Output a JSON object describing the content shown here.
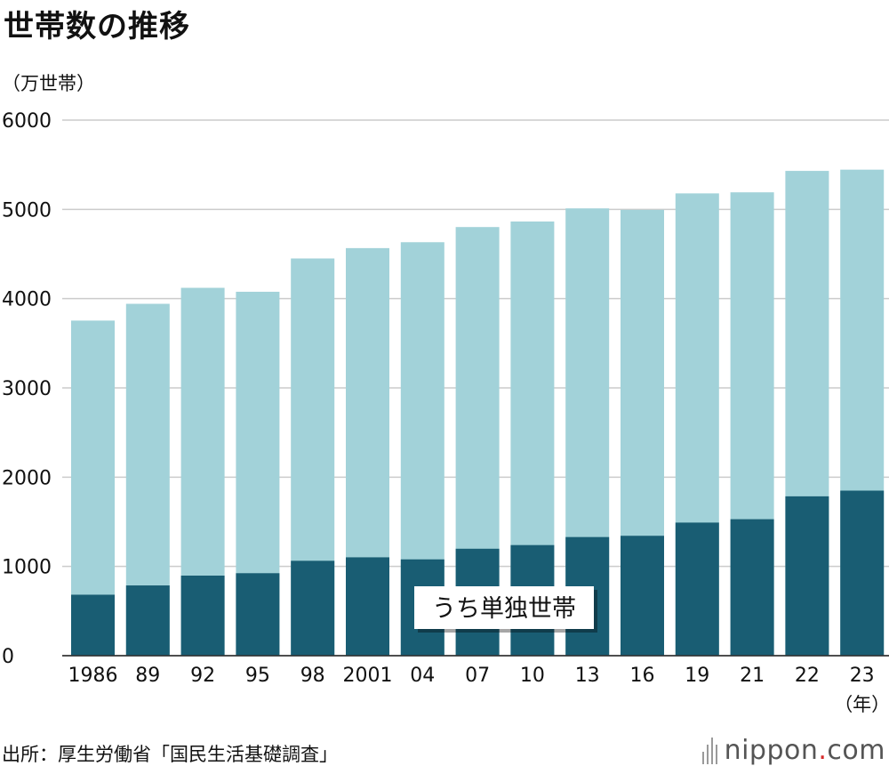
{
  "chart_data": {
    "type": "bar",
    "title": "世帯数の推移",
    "ylabel": "（万世帯）",
    "xlabel": "（年）",
    "categories": [
      "1986",
      "89",
      "92",
      "95",
      "98",
      "2001",
      "04",
      "07",
      "10",
      "13",
      "16",
      "19",
      "21",
      "22",
      "23"
    ],
    "series": [
      {
        "name": "",
        "values": [
          3754,
          3942,
          4121,
          4077,
          4450,
          4566,
          4632,
          4802,
          4864,
          5011,
          4995,
          5179,
          5191,
          5431,
          5445
        ]
      },
      {
        "name": "うち単独世帯",
        "values": [
          683,
          787,
          897,
          924,
          1063,
          1102,
          1079,
          1198,
          1239,
          1329,
          1343,
          1491,
          1529,
          1785,
          1849
        ]
      }
    ],
    "ylim": [
      0,
      6000
    ],
    "yticks": [
      0,
      1000,
      2000,
      3000,
      4000,
      5000,
      6000
    ],
    "grid": true,
    "colors": {
      "total": "#a2d2d9",
      "single": "#195d73",
      "grid": "#cccccc"
    }
  },
  "footer": {
    "source": "出所：厚生労働省「国民生活基礎調査」",
    "brand_main": "nippon",
    "brand_dot": ".",
    "brand_tld": "com"
  }
}
